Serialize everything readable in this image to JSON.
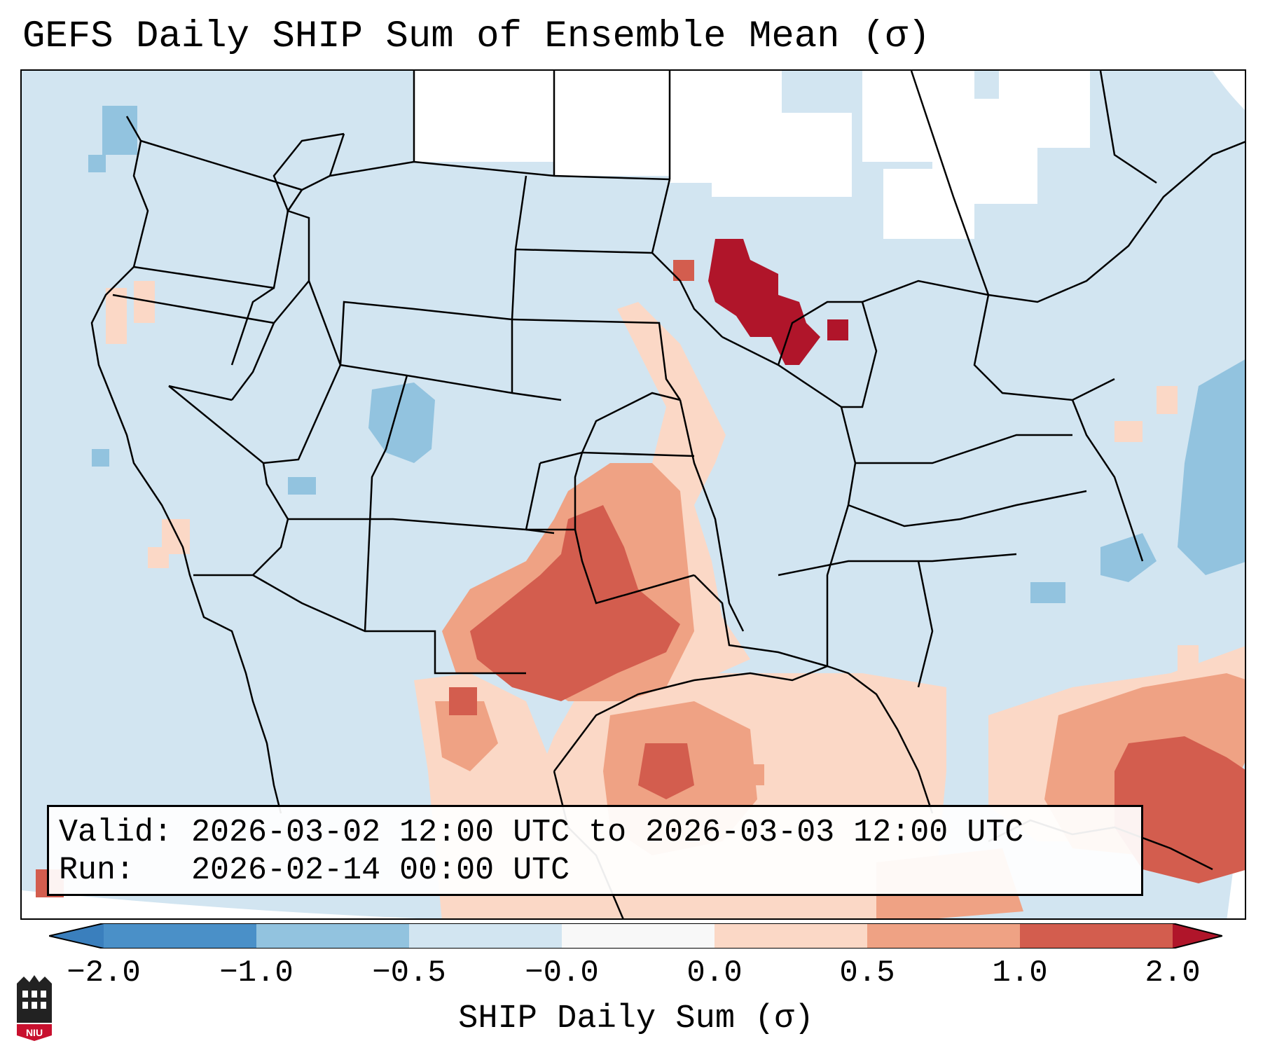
{
  "title": "GEFS Daily SHIP Sum of Ensemble Mean (σ)",
  "info": {
    "valid_label": "Valid:",
    "valid_value": "2026-03-02 12:00 UTC to 2026-03-03 12:00 UTC",
    "run_label": "Run:",
    "run_value": "2026-02-14 00:00 UTC"
  },
  "colorbar": {
    "label": "SHIP Daily Sum (σ)",
    "ticks": [
      "−2.0",
      "−1.0",
      "−0.5",
      "−0.0",
      "0.0",
      "0.5",
      "1.0",
      "2.0"
    ],
    "bins": [
      {
        "range": "<-2.0",
        "color": "#3a7fbd"
      },
      {
        "range": "-2.0 to -1.0",
        "color": "#4a90c8"
      },
      {
        "range": "-1.0 to -0.5",
        "color": "#92c3df"
      },
      {
        "range": "-0.5 to 0.0",
        "color": "#d2e5f1"
      },
      {
        "range": "0.0",
        "color": "#f8f8f8"
      },
      {
        "range": "0.0 to 0.5",
        "color": "#fbd8c6"
      },
      {
        "range": "0.5 to 1.0",
        "color": "#efa284"
      },
      {
        "range": "1.0 to 2.0",
        "color": "#d35d4e"
      },
      {
        "range": ">2.0",
        "color": "#b0152a"
      }
    ]
  },
  "map": {
    "background_color": "#d2e5f1",
    "no_data_color": "#ffffff",
    "regions": [
      {
        "name": "Great Lakes / Wisconsin maximum",
        "category": ">2.0"
      },
      {
        "name": "Southern Plains / Texas / Oklahoma",
        "category": "1.0 to 2.0"
      },
      {
        "name": "Western Gulf of Mexico",
        "category": "0.5 to 1.0"
      },
      {
        "name": "Caribbean / Atlantic southeast",
        "category": "1.0 to 2.0"
      },
      {
        "name": "Colorado Rockies",
        "category": "-1.0 to -0.5"
      },
      {
        "name": "Western Atlantic",
        "category": "-1.0 to -0.5"
      }
    ]
  },
  "logo": {
    "text": "NIU",
    "color": "#c8102e"
  }
}
